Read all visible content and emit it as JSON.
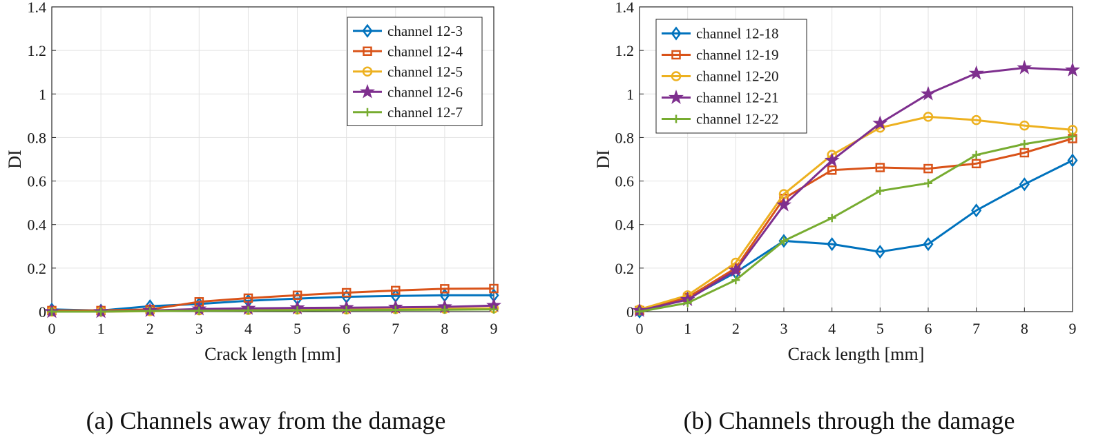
{
  "chart_data": [
    {
      "type": "line",
      "caption": "(a) Channels away from the damage",
      "xlabel": "Crack length [mm]",
      "ylabel": "DI",
      "xlim": [
        0,
        9
      ],
      "ylim": [
        0,
        1.4
      ],
      "x": [
        0,
        1,
        2,
        3,
        4,
        5,
        6,
        7,
        8,
        9
      ],
      "xticks": [
        "0",
        "1",
        "2",
        "3",
        "4",
        "5",
        "6",
        "7",
        "8",
        "9"
      ],
      "yticks": [
        "0",
        "0.2",
        "0.4",
        "0.6",
        "0.8",
        "1",
        "1.2",
        "1.4"
      ],
      "grid": true,
      "legend_position": "top-right",
      "series": [
        {
          "name": "channel 12-3",
          "color": "#0072BD",
          "marker": "diamond",
          "values": [
            0.01,
            0.005,
            0.025,
            0.035,
            0.05,
            0.06,
            0.068,
            0.072,
            0.075,
            0.075
          ]
        },
        {
          "name": "channel 12-4",
          "color": "#D95319",
          "marker": "square",
          "values": [
            0.005,
            0.005,
            0.01,
            0.045,
            0.062,
            0.075,
            0.087,
            0.097,
            0.105,
            0.106
          ]
        },
        {
          "name": "channel 12-5",
          "color": "#EDB120",
          "marker": "circle",
          "values": [
            0.0,
            0.0,
            0.002,
            0.006,
            0.008,
            0.01,
            0.01,
            0.012,
            0.013,
            0.015
          ]
        },
        {
          "name": "channel 12-6",
          "color": "#7E2F8E",
          "marker": "star",
          "values": [
            0.0,
            0.0,
            0.005,
            0.012,
            0.015,
            0.017,
            0.018,
            0.02,
            0.022,
            0.028
          ]
        },
        {
          "name": "channel 12-7",
          "color": "#77AC30",
          "marker": "plus",
          "values": [
            0.0,
            0.0,
            0.003,
            0.004,
            0.005,
            0.006,
            0.007,
            0.008,
            0.009,
            0.01
          ]
        }
      ]
    },
    {
      "type": "line",
      "caption": "(b) Channels through the damage",
      "xlabel": "Crack length [mm]",
      "ylabel": "DI",
      "xlim": [
        0,
        9
      ],
      "ylim": [
        0,
        1.4
      ],
      "x": [
        0,
        1,
        2,
        3,
        4,
        5,
        6,
        7,
        8,
        9
      ],
      "xticks": [
        "0",
        "1",
        "2",
        "3",
        "4",
        "5",
        "6",
        "7",
        "8",
        "9"
      ],
      "yticks": [
        "0",
        "0.2",
        "0.4",
        "0.6",
        "0.8",
        "1",
        "1.2",
        "1.4"
      ],
      "grid": true,
      "legend_position": "top-left",
      "series": [
        {
          "name": "channel 12-18",
          "color": "#0072BD",
          "marker": "diamond",
          "values": [
            0.0,
            0.06,
            0.18,
            0.325,
            0.31,
            0.275,
            0.31,
            0.465,
            0.585,
            0.695
          ]
        },
        {
          "name": "channel 12-19",
          "color": "#D95319",
          "marker": "square",
          "values": [
            0.005,
            0.065,
            0.2,
            0.52,
            0.65,
            0.662,
            0.657,
            0.68,
            0.73,
            0.795
          ]
        },
        {
          "name": "channel 12-20",
          "color": "#EDB120",
          "marker": "circle",
          "values": [
            0.01,
            0.075,
            0.225,
            0.54,
            0.72,
            0.845,
            0.895,
            0.88,
            0.855,
            0.835
          ]
        },
        {
          "name": "channel 12-21",
          "color": "#7E2F8E",
          "marker": "star",
          "values": [
            0.005,
            0.055,
            0.19,
            0.49,
            0.695,
            0.865,
            1.0,
            1.095,
            1.12,
            1.11
          ]
        },
        {
          "name": "channel 12-22",
          "color": "#77AC30",
          "marker": "plus",
          "values": [
            0.0,
            0.04,
            0.145,
            0.325,
            0.43,
            0.555,
            0.59,
            0.72,
            0.77,
            0.805
          ]
        }
      ]
    }
  ]
}
